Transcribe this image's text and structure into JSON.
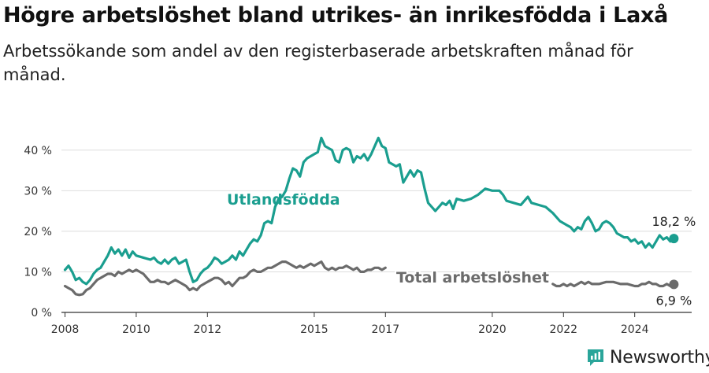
{
  "title": "Högre arbetslöshet bland utrikes- än inrikesfödda i Laxå",
  "subtitle": "Arbetssökande som andel av den registerbaserade arbetskraften månad för månad.",
  "brand": {
    "name": "Newsworthy"
  },
  "colors": {
    "foreign": "#1a9e8f",
    "total": "#6b6b6b",
    "grid": "#dddddd",
    "axis": "#333333"
  },
  "chart_data": {
    "type": "line",
    "title": "Högre arbetslöshet bland utrikes- än inrikesfödda i Laxå",
    "subtitle": "Arbetssökande som andel av den registerbaserade arbetskraften månad för månad.",
    "xlabel": "",
    "ylabel": "",
    "ylim": [
      0,
      45
    ],
    "xlim": [
      2007.9,
      2025.6
    ],
    "grid": true,
    "x_ticks": [
      2008,
      2010,
      2012,
      2015,
      2017,
      2020,
      2022,
      2024
    ],
    "y_ticks": [
      {
        "value": 0,
        "label": "0 %"
      },
      {
        "value": 10,
        "label": "10 %"
      },
      {
        "value": 20,
        "label": "20 %"
      },
      {
        "value": 30,
        "label": "30 %"
      },
      {
        "value": 40,
        "label": "40 %"
      }
    ],
    "series": [
      {
        "name": "Utlandsfödda",
        "color": "#1a9e8f",
        "end_label": "18,2 %",
        "points": [
          [
            2008.0,
            10.5
          ],
          [
            2008.1,
            11.5
          ],
          [
            2008.2,
            10.0
          ],
          [
            2008.3,
            8.0
          ],
          [
            2008.4,
            8.5
          ],
          [
            2008.5,
            7.5
          ],
          [
            2008.6,
            7.0
          ],
          [
            2008.7,
            8.0
          ],
          [
            2008.8,
            9.5
          ],
          [
            2008.9,
            10.5
          ],
          [
            2009.0,
            11.0
          ],
          [
            2009.1,
            12.5
          ],
          [
            2009.2,
            14.0
          ],
          [
            2009.3,
            16.0
          ],
          [
            2009.4,
            14.5
          ],
          [
            2009.5,
            15.5
          ],
          [
            2009.6,
            14.0
          ],
          [
            2009.7,
            15.5
          ],
          [
            2009.8,
            13.5
          ],
          [
            2009.9,
            15.0
          ],
          [
            2010.0,
            14.0
          ],
          [
            2010.2,
            13.5
          ],
          [
            2010.4,
            13.0
          ],
          [
            2010.5,
            13.5
          ],
          [
            2010.6,
            12.5
          ],
          [
            2010.7,
            12.0
          ],
          [
            2010.8,
            13.0
          ],
          [
            2010.9,
            12.0
          ],
          [
            2011.0,
            13.0
          ],
          [
            2011.1,
            13.5
          ],
          [
            2011.2,
            12.0
          ],
          [
            2011.3,
            12.5
          ],
          [
            2011.4,
            13.0
          ],
          [
            2011.5,
            10.0
          ],
          [
            2011.6,
            7.5
          ],
          [
            2011.7,
            8.0
          ],
          [
            2011.8,
            9.5
          ],
          [
            2011.9,
            10.5
          ],
          [
            2012.0,
            11.0
          ],
          [
            2012.1,
            12.0
          ],
          [
            2012.2,
            13.5
          ],
          [
            2012.3,
            13.0
          ],
          [
            2012.4,
            12.0
          ],
          [
            2012.5,
            12.5
          ],
          [
            2012.6,
            13.0
          ],
          [
            2012.7,
            14.0
          ],
          [
            2012.8,
            13.0
          ],
          [
            2012.9,
            15.0
          ],
          [
            2013.0,
            14.0
          ],
          [
            2013.1,
            15.5
          ],
          [
            2013.2,
            17.0
          ],
          [
            2013.3,
            18.0
          ],
          [
            2013.4,
            17.5
          ],
          [
            2013.5,
            19.0
          ],
          [
            2013.6,
            22.0
          ],
          [
            2013.7,
            22.5
          ],
          [
            2013.8,
            22.0
          ],
          [
            2013.9,
            26.0
          ],
          [
            2014.0,
            28.0
          ],
          [
            2014.1,
            28.5
          ],
          [
            2014.2,
            30.0
          ],
          [
            2014.3,
            33.0
          ],
          [
            2014.4,
            35.5
          ],
          [
            2014.5,
            35.0
          ],
          [
            2014.6,
            33.5
          ],
          [
            2014.7,
            37.0
          ],
          [
            2014.8,
            38.0
          ],
          [
            2014.9,
            38.5
          ],
          [
            2015.0,
            39.0
          ],
          [
            2015.1,
            39.5
          ],
          [
            2015.2,
            43.0
          ],
          [
            2015.3,
            41.0
          ],
          [
            2015.4,
            40.5
          ],
          [
            2015.5,
            40.0
          ],
          [
            2015.6,
            37.5
          ],
          [
            2015.7,
            37.0
          ],
          [
            2015.8,
            40.0
          ],
          [
            2015.9,
            40.5
          ],
          [
            2016.0,
            40.0
          ],
          [
            2016.1,
            37.0
          ],
          [
            2016.2,
            38.5
          ],
          [
            2016.3,
            38.0
          ],
          [
            2016.4,
            39.0
          ],
          [
            2016.5,
            37.5
          ],
          [
            2016.6,
            39.0
          ],
          [
            2016.7,
            41.0
          ],
          [
            2016.8,
            43.0
          ],
          [
            2016.9,
            41.0
          ],
          [
            2017.0,
            40.5
          ],
          [
            2017.1,
            37.0
          ],
          [
            2017.2,
            36.5
          ],
          [
            2017.3,
            36.0
          ],
          [
            2017.4,
            36.5
          ],
          [
            2017.5,
            32.0
          ],
          [
            2017.6,
            33.5
          ],
          [
            2017.7,
            35.0
          ],
          [
            2017.8,
            33.5
          ],
          [
            2017.9,
            35.0
          ],
          [
            2018.0,
            34.5
          ],
          [
            2018.1,
            30.5
          ],
          [
            2018.2,
            27.0
          ],
          [
            2018.3,
            26.0
          ],
          [
            2018.4,
            25.0
          ],
          [
            2018.5,
            26.0
          ],
          [
            2018.6,
            27.0
          ],
          [
            2018.7,
            26.5
          ],
          [
            2018.8,
            27.5
          ],
          [
            2018.9,
            25.5
          ],
          [
            2019.0,
            28.0
          ],
          [
            2019.2,
            27.5
          ],
          [
            2019.4,
            28.0
          ],
          [
            2019.6,
            29.0
          ],
          [
            2019.8,
            30.5
          ],
          [
            2020.0,
            30.0
          ],
          [
            2020.2,
            30.0
          ],
          [
            2020.3,
            29.0
          ],
          [
            2020.4,
            27.5
          ],
          [
            2020.6,
            27.0
          ],
          [
            2020.8,
            26.5
          ],
          [
            2021.0,
            28.5
          ],
          [
            2021.1,
            27.0
          ],
          [
            2021.3,
            26.5
          ],
          [
            2021.5,
            26.0
          ],
          [
            2021.7,
            24.5
          ],
          [
            2021.9,
            22.5
          ],
          [
            2022.0,
            22.0
          ],
          [
            2022.1,
            21.5
          ],
          [
            2022.2,
            21.0
          ],
          [
            2022.3,
            20.0
          ],
          [
            2022.4,
            21.0
          ],
          [
            2022.5,
            20.5
          ],
          [
            2022.6,
            22.5
          ],
          [
            2022.7,
            23.5
          ],
          [
            2022.8,
            22.0
          ],
          [
            2022.9,
            20.0
          ],
          [
            2023.0,
            20.5
          ],
          [
            2023.1,
            22.0
          ],
          [
            2023.2,
            22.5
          ],
          [
            2023.3,
            22.0
          ],
          [
            2023.4,
            21.0
          ],
          [
            2023.5,
            19.5
          ],
          [
            2023.6,
            19.0
          ],
          [
            2023.7,
            18.5
          ],
          [
            2023.8,
            18.5
          ],
          [
            2023.9,
            17.5
          ],
          [
            2024.0,
            18.0
          ],
          [
            2024.1,
            17.0
          ],
          [
            2024.2,
            17.5
          ],
          [
            2024.3,
            16.0
          ],
          [
            2024.4,
            17.0
          ],
          [
            2024.5,
            16.0
          ],
          [
            2024.6,
            17.5
          ],
          [
            2024.7,
            19.0
          ],
          [
            2024.8,
            18.0
          ],
          [
            2024.9,
            18.5
          ],
          [
            2025.0,
            17.5
          ],
          [
            2025.1,
            18.2
          ]
        ]
      },
      {
        "name": "Total arbetslöshet",
        "color": "#6b6b6b",
        "end_label": "6,9 %",
        "points": [
          [
            2008.0,
            6.5
          ],
          [
            2008.1,
            6.0
          ],
          [
            2008.2,
            5.5
          ],
          [
            2008.3,
            4.5
          ],
          [
            2008.4,
            4.3
          ],
          [
            2008.5,
            4.5
          ],
          [
            2008.6,
            5.5
          ],
          [
            2008.7,
            6.0
          ],
          [
            2008.8,
            7.0
          ],
          [
            2008.9,
            8.0
          ],
          [
            2009.0,
            8.5
          ],
          [
            2009.1,
            9.0
          ],
          [
            2009.2,
            9.5
          ],
          [
            2009.3,
            9.5
          ],
          [
            2009.4,
            9.0
          ],
          [
            2009.5,
            10.0
          ],
          [
            2009.6,
            9.5
          ],
          [
            2009.7,
            10.0
          ],
          [
            2009.8,
            10.5
          ],
          [
            2009.9,
            10.0
          ],
          [
            2010.0,
            10.5
          ],
          [
            2010.1,
            10.0
          ],
          [
            2010.2,
            9.5
          ],
          [
            2010.3,
            8.5
          ],
          [
            2010.4,
            7.5
          ],
          [
            2010.5,
            7.5
          ],
          [
            2010.6,
            8.0
          ],
          [
            2010.7,
            7.5
          ],
          [
            2010.8,
            7.5
          ],
          [
            2010.9,
            7.0
          ],
          [
            2011.0,
            7.5
          ],
          [
            2011.1,
            8.0
          ],
          [
            2011.2,
            7.5
          ],
          [
            2011.3,
            7.0
          ],
          [
            2011.4,
            6.5
          ],
          [
            2011.5,
            5.5
          ],
          [
            2011.6,
            6.0
          ],
          [
            2011.7,
            5.5
          ],
          [
            2011.8,
            6.5
          ],
          [
            2011.9,
            7.0
          ],
          [
            2012.0,
            7.5
          ],
          [
            2012.1,
            8.0
          ],
          [
            2012.2,
            8.5
          ],
          [
            2012.3,
            8.5
          ],
          [
            2012.4,
            8.0
          ],
          [
            2012.5,
            7.0
          ],
          [
            2012.6,
            7.5
          ],
          [
            2012.7,
            6.5
          ],
          [
            2012.8,
            7.5
          ],
          [
            2012.9,
            8.5
          ],
          [
            2013.0,
            8.5
          ],
          [
            2013.1,
            9.0
          ],
          [
            2013.2,
            10.0
          ],
          [
            2013.3,
            10.5
          ],
          [
            2013.4,
            10.0
          ],
          [
            2013.5,
            10.0
          ],
          [
            2013.6,
            10.5
          ],
          [
            2013.7,
            11.0
          ],
          [
            2013.8,
            11.0
          ],
          [
            2013.9,
            11.5
          ],
          [
            2014.0,
            12.0
          ],
          [
            2014.1,
            12.5
          ],
          [
            2014.2,
            12.5
          ],
          [
            2014.3,
            12.0
          ],
          [
            2014.4,
            11.5
          ],
          [
            2014.5,
            11.0
          ],
          [
            2014.6,
            11.5
          ],
          [
            2014.7,
            11.0
          ],
          [
            2014.8,
            11.5
          ],
          [
            2014.9,
            12.0
          ],
          [
            2015.0,
            11.5
          ],
          [
            2015.1,
            12.0
          ],
          [
            2015.2,
            12.5
          ],
          [
            2015.3,
            11.0
          ],
          [
            2015.4,
            10.5
          ],
          [
            2015.5,
            11.0
          ],
          [
            2015.6,
            10.5
          ],
          [
            2015.7,
            11.0
          ],
          [
            2015.8,
            11.0
          ],
          [
            2015.9,
            11.5
          ],
          [
            2016.0,
            11.0
          ],
          [
            2016.1,
            10.5
          ],
          [
            2016.2,
            11.0
          ],
          [
            2016.3,
            10.0
          ],
          [
            2016.4,
            10.0
          ],
          [
            2016.5,
            10.5
          ],
          [
            2016.6,
            10.5
          ],
          [
            2016.7,
            11.0
          ],
          [
            2016.8,
            11.0
          ],
          [
            2016.9,
            10.5
          ],
          [
            2017.0,
            11.0
          ],
          null,
          [
            2021.7,
            7.0
          ],
          [
            2021.8,
            6.5
          ],
          [
            2021.9,
            6.5
          ],
          [
            2022.0,
            7.0
          ],
          [
            2022.1,
            6.5
          ],
          [
            2022.2,
            7.0
          ],
          [
            2022.3,
            6.5
          ],
          [
            2022.4,
            7.0
          ],
          [
            2022.5,
            7.5
          ],
          [
            2022.6,
            7.0
          ],
          [
            2022.7,
            7.5
          ],
          [
            2022.8,
            7.0
          ],
          [
            2022.9,
            7.0
          ],
          [
            2023.0,
            7.0
          ],
          [
            2023.2,
            7.5
          ],
          [
            2023.4,
            7.5
          ],
          [
            2023.6,
            7.0
          ],
          [
            2023.8,
            7.0
          ],
          [
            2024.0,
            6.5
          ],
          [
            2024.1,
            6.5
          ],
          [
            2024.2,
            7.0
          ],
          [
            2024.3,
            7.0
          ],
          [
            2024.4,
            7.5
          ],
          [
            2024.5,
            7.0
          ],
          [
            2024.6,
            7.0
          ],
          [
            2024.7,
            6.5
          ],
          [
            2024.8,
            6.5
          ],
          [
            2024.9,
            7.0
          ],
          [
            2025.0,
            6.5
          ],
          [
            2025.1,
            6.9
          ]
        ]
      }
    ],
    "annotations": [
      {
        "text": "Utlandsfödda",
        "series": 0
      },
      {
        "text": "Total arbetslöshet",
        "series": 1
      }
    ]
  }
}
